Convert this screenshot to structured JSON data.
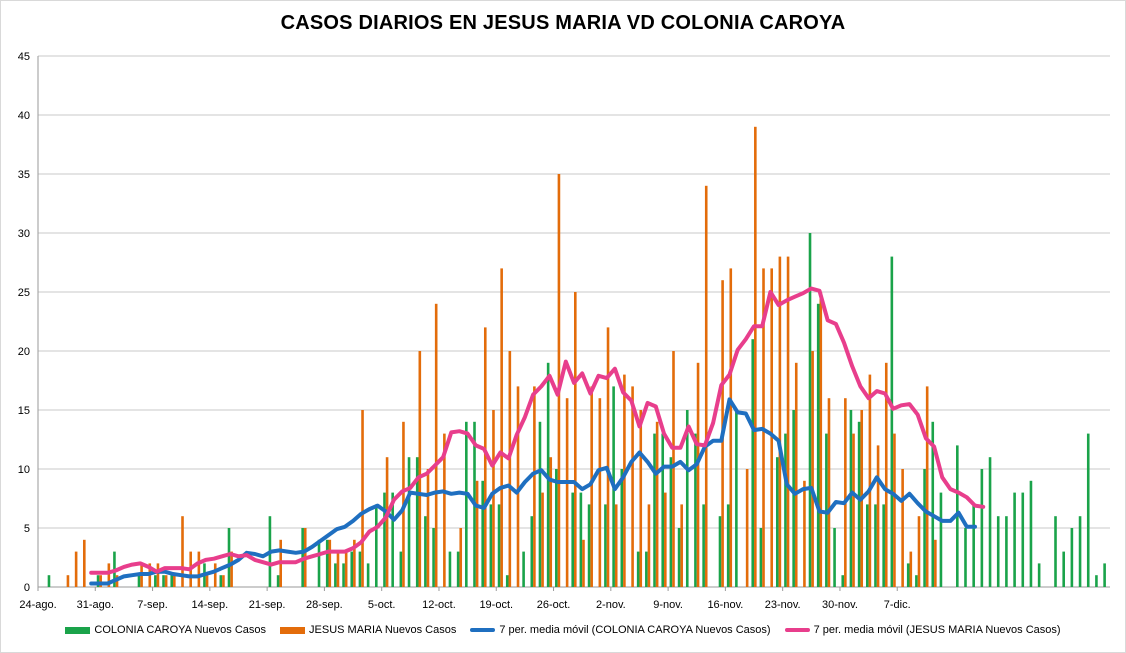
{
  "chart_data": {
    "type": "bar",
    "title": "CASOS DIARIOS EN JESUS MARIA VD COLONIA CAROYA",
    "ylim": [
      0,
      45
    ],
    "yticks": [
      0,
      5,
      10,
      15,
      20,
      25,
      30,
      35,
      40,
      45
    ],
    "grid": true,
    "legend_position": "bottom",
    "x_tick_labels": [
      "24-ago.",
      "31-ago.",
      "7-sep.",
      "14-sep.",
      "21-sep.",
      "28-sep.",
      "5-oct.",
      "12-oct.",
      "19-oct.",
      "26-oct.",
      "2-nov.",
      "9-nov.",
      "16-nov.",
      "23-nov.",
      "30-nov.",
      "7-dic."
    ],
    "series": [
      {
        "name": "COLONIA CAROYA Nuevos Casos",
        "kind": "bar",
        "color": "#1aa34a",
        "values": [
          0,
          1,
          0,
          0,
          0,
          0,
          0,
          1,
          0,
          3,
          0,
          0,
          1,
          0,
          1,
          1,
          1,
          0,
          0,
          0,
          2,
          0,
          1,
          5,
          0,
          0,
          0,
          0,
          6,
          1,
          0,
          0,
          5,
          0,
          4,
          4,
          2,
          2,
          3,
          3,
          2,
          7,
          8,
          8,
          3,
          11,
          11,
          6,
          5,
          0,
          3,
          3,
          14,
          14,
          9,
          7,
          7,
          1,
          0,
          3,
          6,
          14,
          19,
          10,
          0,
          8,
          8,
          7,
          0,
          7,
          17,
          10,
          0,
          3,
          3,
          13,
          13,
          11,
          5,
          15,
          13,
          7,
          0,
          6,
          7,
          15,
          0,
          21,
          5,
          0,
          11,
          13,
          15,
          0,
          30,
          24,
          13,
          5,
          1,
          15,
          14,
          7,
          7,
          7,
          28,
          0,
          2,
          1,
          10,
          14,
          8,
          0,
          12,
          5,
          7,
          10,
          11,
          6,
          6,
          8,
          8,
          9,
          2,
          0,
          6,
          3,
          5,
          6,
          13,
          1,
          2
        ]
      },
      {
        "name": "JESUS MARIA Nuevos Casos",
        "kind": "bar",
        "color": "#e36c0a",
        "values": [
          0,
          0,
          0,
          1,
          3,
          4,
          0,
          1,
          2,
          1,
          0,
          0,
          2,
          2,
          2,
          1,
          1,
          6,
          3,
          3,
          1,
          2,
          1,
          3,
          0,
          0,
          0,
          0,
          0,
          4,
          0,
          0,
          5,
          0,
          0,
          4,
          3,
          3,
          4,
          15,
          0,
          0,
          11,
          0,
          14,
          0,
          20,
          10,
          24,
          13,
          0,
          5,
          0,
          9,
          22,
          15,
          27,
          20,
          17,
          0,
          17,
          8,
          11,
          35,
          16,
          25,
          4,
          17,
          16,
          22,
          7,
          18,
          17,
          15,
          7,
          14,
          8,
          20,
          7,
          0,
          19,
          34,
          0,
          26,
          27,
          0,
          10,
          39,
          27,
          27,
          28,
          28,
          19,
          9,
          20,
          25,
          16,
          0,
          16,
          13,
          15,
          18,
          12,
          19,
          13,
          10,
          3,
          6,
          17,
          4,
          0,
          0,
          0
        ]
      },
      {
        "name": "7 per. media móvil (COLONIA CAROYA Nuevos Casos)",
        "kind": "line",
        "color": "#1f6fc0",
        "values": [
          null,
          null,
          null,
          null,
          null,
          null,
          0.3,
          0.3,
          0.3,
          0.6,
          0.9,
          1.0,
          1.1,
          1.1,
          1.3,
          1.3,
          1.1,
          1.0,
          0.9,
          0.9,
          1.1,
          1.3,
          1.6,
          1.9,
          2.3,
          2.9,
          2.8,
          2.6,
          3.0,
          3.1,
          3.0,
          2.9,
          3.0,
          3.4,
          3.9,
          4.4,
          4.9,
          5.1,
          5.6,
          6.2,
          6.6,
          6.9,
          6.4,
          5.7,
          6.5,
          8.0,
          7.9,
          7.8,
          8.0,
          8.1,
          7.9,
          8.0,
          7.9,
          6.9,
          6.7,
          7.9,
          8.4,
          8.6,
          8.0,
          8.9,
          9.6,
          9.9,
          9.1,
          8.9,
          8.9,
          8.9,
          8.3,
          8.7,
          9.9,
          10.1,
          8.3,
          9.3,
          10.6,
          11.4,
          10.6,
          9.6,
          10.2,
          10.2,
          10.6,
          9.9,
          10.4,
          11.9,
          12.4,
          12.4,
          15.9,
          14.8,
          14.7,
          13.3,
          13.4,
          13.0,
          12.4,
          8.7,
          7.9,
          8.3,
          8.4,
          6.4,
          6.3,
          7.2,
          7.1,
          8.0,
          7.4,
          8.1,
          9.3,
          8.3,
          7.9,
          7.3,
          7.9,
          7.1,
          6.4,
          6.0,
          5.6,
          5.6,
          6.3,
          5.1,
          5.1
        ]
      },
      {
        "name": "7 per. media móvil (JESUS MARIA Nuevos Casos)",
        "kind": "line",
        "color": "#e83e8c",
        "values": [
          null,
          null,
          null,
          null,
          null,
          null,
          1.2,
          1.2,
          1.2,
          1.4,
          1.7,
          1.9,
          2.0,
          1.7,
          1.3,
          1.6,
          1.6,
          1.6,
          1.5,
          2.0,
          2.3,
          2.4,
          2.6,
          2.8,
          2.6,
          2.7,
          2.3,
          2.1,
          1.9,
          2.1,
          2.1,
          2.1,
          2.4,
          2.6,
          2.8,
          3.0,
          3.0,
          3.0,
          3.3,
          3.8,
          4.7,
          5.1,
          5.9,
          7.4,
          8.1,
          8.4,
          9.3,
          9.6,
          10.3,
          11.0,
          13.1,
          13.2,
          13.0,
          12.0,
          11.7,
          10.3,
          11.4,
          10.9,
          12.9,
          14.4,
          16.3,
          17.0,
          17.9,
          16.3,
          19.1,
          17.3,
          18.1,
          16.4,
          17.9,
          17.7,
          18.5,
          16.5,
          15.8,
          13.6,
          15.6,
          15.3,
          13.0,
          11.8,
          11.8,
          13.6,
          12.1,
          12.0,
          13.9,
          17.1,
          18.0,
          20.1,
          21.0,
          22.1,
          22.1,
          25.0,
          23.9,
          24.3,
          24.6,
          24.9,
          25.3,
          25.1,
          22.6,
          22.3,
          20.7,
          18.7,
          17.0,
          16.0,
          16.6,
          16.4,
          15.1,
          15.4,
          15.5,
          14.6,
          12.6,
          11.9,
          9.3,
          8.3,
          8.0,
          7.6,
          6.9,
          6.8
        ]
      }
    ]
  }
}
